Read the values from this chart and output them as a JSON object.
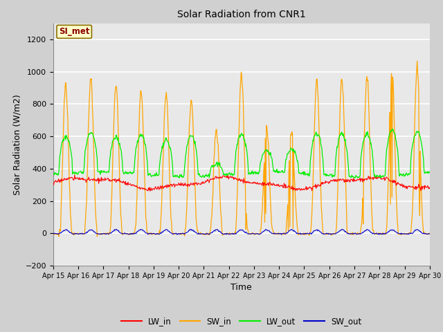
{
  "title": "Solar Radiation from CNR1",
  "xlabel": "Time",
  "ylabel": "Solar Radiation (W/m2)",
  "ylim": [
    -200,
    1300
  ],
  "yticks": [
    -200,
    0,
    200,
    400,
    600,
    800,
    1000,
    1200
  ],
  "date_labels": [
    "Apr 15",
    "Apr 16",
    "Apr 17",
    "Apr 18",
    "Apr 19",
    "Apr 20",
    "Apr 21",
    "Apr 22",
    "Apr 23",
    "Apr 24",
    "Apr 25",
    "Apr 26",
    "Apr 27",
    "Apr 28",
    "Apr 29",
    "Apr 30"
  ],
  "legend_labels": [
    "LW_in",
    "SW_in",
    "LW_out",
    "SW_out"
  ],
  "legend_colors": [
    "#ff0000",
    "#ffa500",
    "#00cc00",
    "#0000ff"
  ],
  "annotation_text": "SI_met",
  "annotation_color": "#8b0000",
  "annotation_bg": "#ffffcc",
  "annotation_border": "#8b7000",
  "lw_color": "#ff0000",
  "sw_in_color": "#ffa500",
  "lw_out_color": "#00ee00",
  "sw_out_color": "#0000cc",
  "plot_bg": "#e8e8e8",
  "fig_bg": "#d0d0d0",
  "grid_color": "#ffffff",
  "figwidth": 6.4,
  "figheight": 4.8,
  "dpi": 100
}
